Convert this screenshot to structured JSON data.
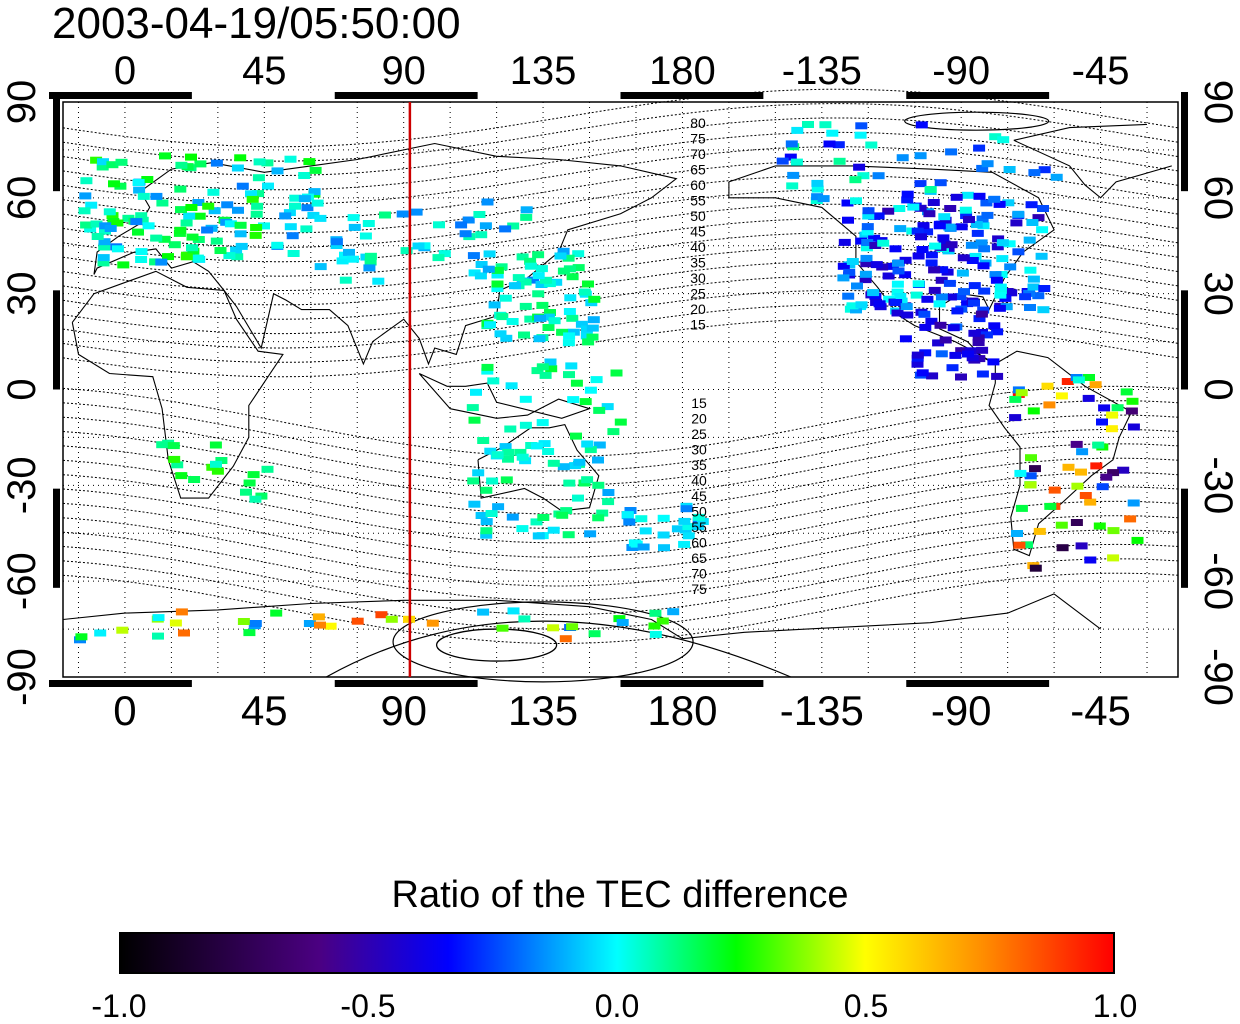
{
  "title": "2003-04-19/05:50:00",
  "map": {
    "lon_ticks_top": [
      "0",
      "45",
      "90",
      "135",
      "180",
      "-135",
      "-90",
      "-45"
    ],
    "lon_ticks_bottom": [
      "0",
      "45",
      "90",
      "135",
      "180",
      "-135",
      "-90",
      "-45"
    ],
    "lat_ticks_left": [
      "90",
      "60",
      "30",
      "0",
      "-30",
      "-60",
      "-90"
    ],
    "lat_ticks_right": [
      "90",
      "60",
      "30",
      "0",
      "-30",
      "-60",
      "-90"
    ],
    "lon_tick_values": [
      0,
      45,
      90,
      135,
      180,
      225,
      270,
      315
    ],
    "lat_tick_values": [
      90,
      60,
      30,
      0,
      -30,
      -60,
      -90
    ],
    "lon_range": [
      -20,
      340
    ],
    "lat_range": [
      -90,
      90
    ],
    "grid": "dotted",
    "meridian_marker": {
      "lon": 92,
      "color": "#cc0000"
    },
    "contour_labels_north": [
      "80",
      "75",
      "70",
      "65",
      "60",
      "55",
      "50",
      "45",
      "40",
      "35",
      "30",
      "25",
      "20",
      "15"
    ],
    "contour_labels_south": [
      "15",
      "20",
      "25",
      "30",
      "35",
      "40",
      "45",
      "50",
      "55",
      "60",
      "65",
      "70",
      "75"
    ]
  },
  "colorbar": {
    "title": "Ratio of the TEC difference",
    "ticks": [
      "-1.0",
      "-0.5",
      "0.0",
      "0.5",
      "1.0"
    ],
    "tick_values": [
      -1.0,
      -0.5,
      0.0,
      0.5,
      1.0
    ],
    "range": [
      -1.0,
      1.0
    ],
    "colors": [
      "#000000",
      "#4b0082",
      "#0000ff",
      "#00ffff",
      "#00ff00",
      "#ffff00",
      "#ff8c00",
      "#ff0000"
    ]
  }
}
